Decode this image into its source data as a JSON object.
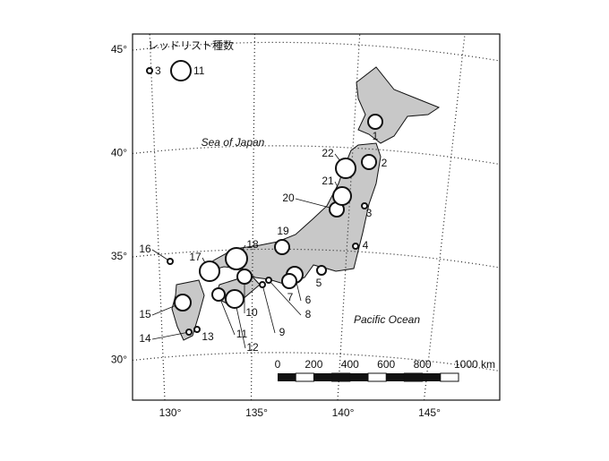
{
  "map": {
    "legend": {
      "title": "レッドリスト種数",
      "sizes": [
        3,
        11
      ]
    },
    "lat_ticks": [
      {
        "value": 45,
        "label": "45°"
      },
      {
        "value": 40,
        "label": "40°"
      },
      {
        "value": 35,
        "label": "35°"
      },
      {
        "value": 30,
        "label": "30°"
      }
    ],
    "lon_ticks": [
      {
        "value": 130,
        "label": "130°"
      },
      {
        "value": 135,
        "label": "135°"
      },
      {
        "value": 140,
        "label": "140°"
      },
      {
        "value": 145,
        "label": "145°"
      }
    ],
    "sea_labels": [
      "Sea of Japan",
      "Pacific Ocean"
    ],
    "scale_bar": [
      0,
      200,
      400,
      600,
      800,
      {
        "value": 1000,
        "label": "1000 km"
      }
    ],
    "sites": [
      {
        "label": "1",
        "count": 8
      },
      {
        "label": "2",
        "count": 8
      },
      {
        "label": "3",
        "count": 3
      },
      {
        "label": "4",
        "count": 3
      },
      {
        "label": "5",
        "count": 5
      },
      {
        "label": "6",
        "count": 9
      },
      {
        "label": "7",
        "count": 8
      },
      {
        "label": "8",
        "count": 3
      },
      {
        "label": "9",
        "count": 3
      },
      {
        "label": "10",
        "count": 8
      },
      {
        "label": "11",
        "count": 7
      },
      {
        "label": "12",
        "count": 10
      },
      {
        "label": "13",
        "count": 3
      },
      {
        "label": "14",
        "count": 3
      },
      {
        "label": "15",
        "count": 9
      },
      {
        "label": "16",
        "count": 3
      },
      {
        "label": "17",
        "count": 11
      },
      {
        "label": "18",
        "count": 12
      },
      {
        "label": "19",
        "count": 8
      },
      {
        "label": "20",
        "count": 8
      },
      {
        "label": "21",
        "count": 10
      },
      {
        "label": "22",
        "count": 11
      }
    ]
  }
}
